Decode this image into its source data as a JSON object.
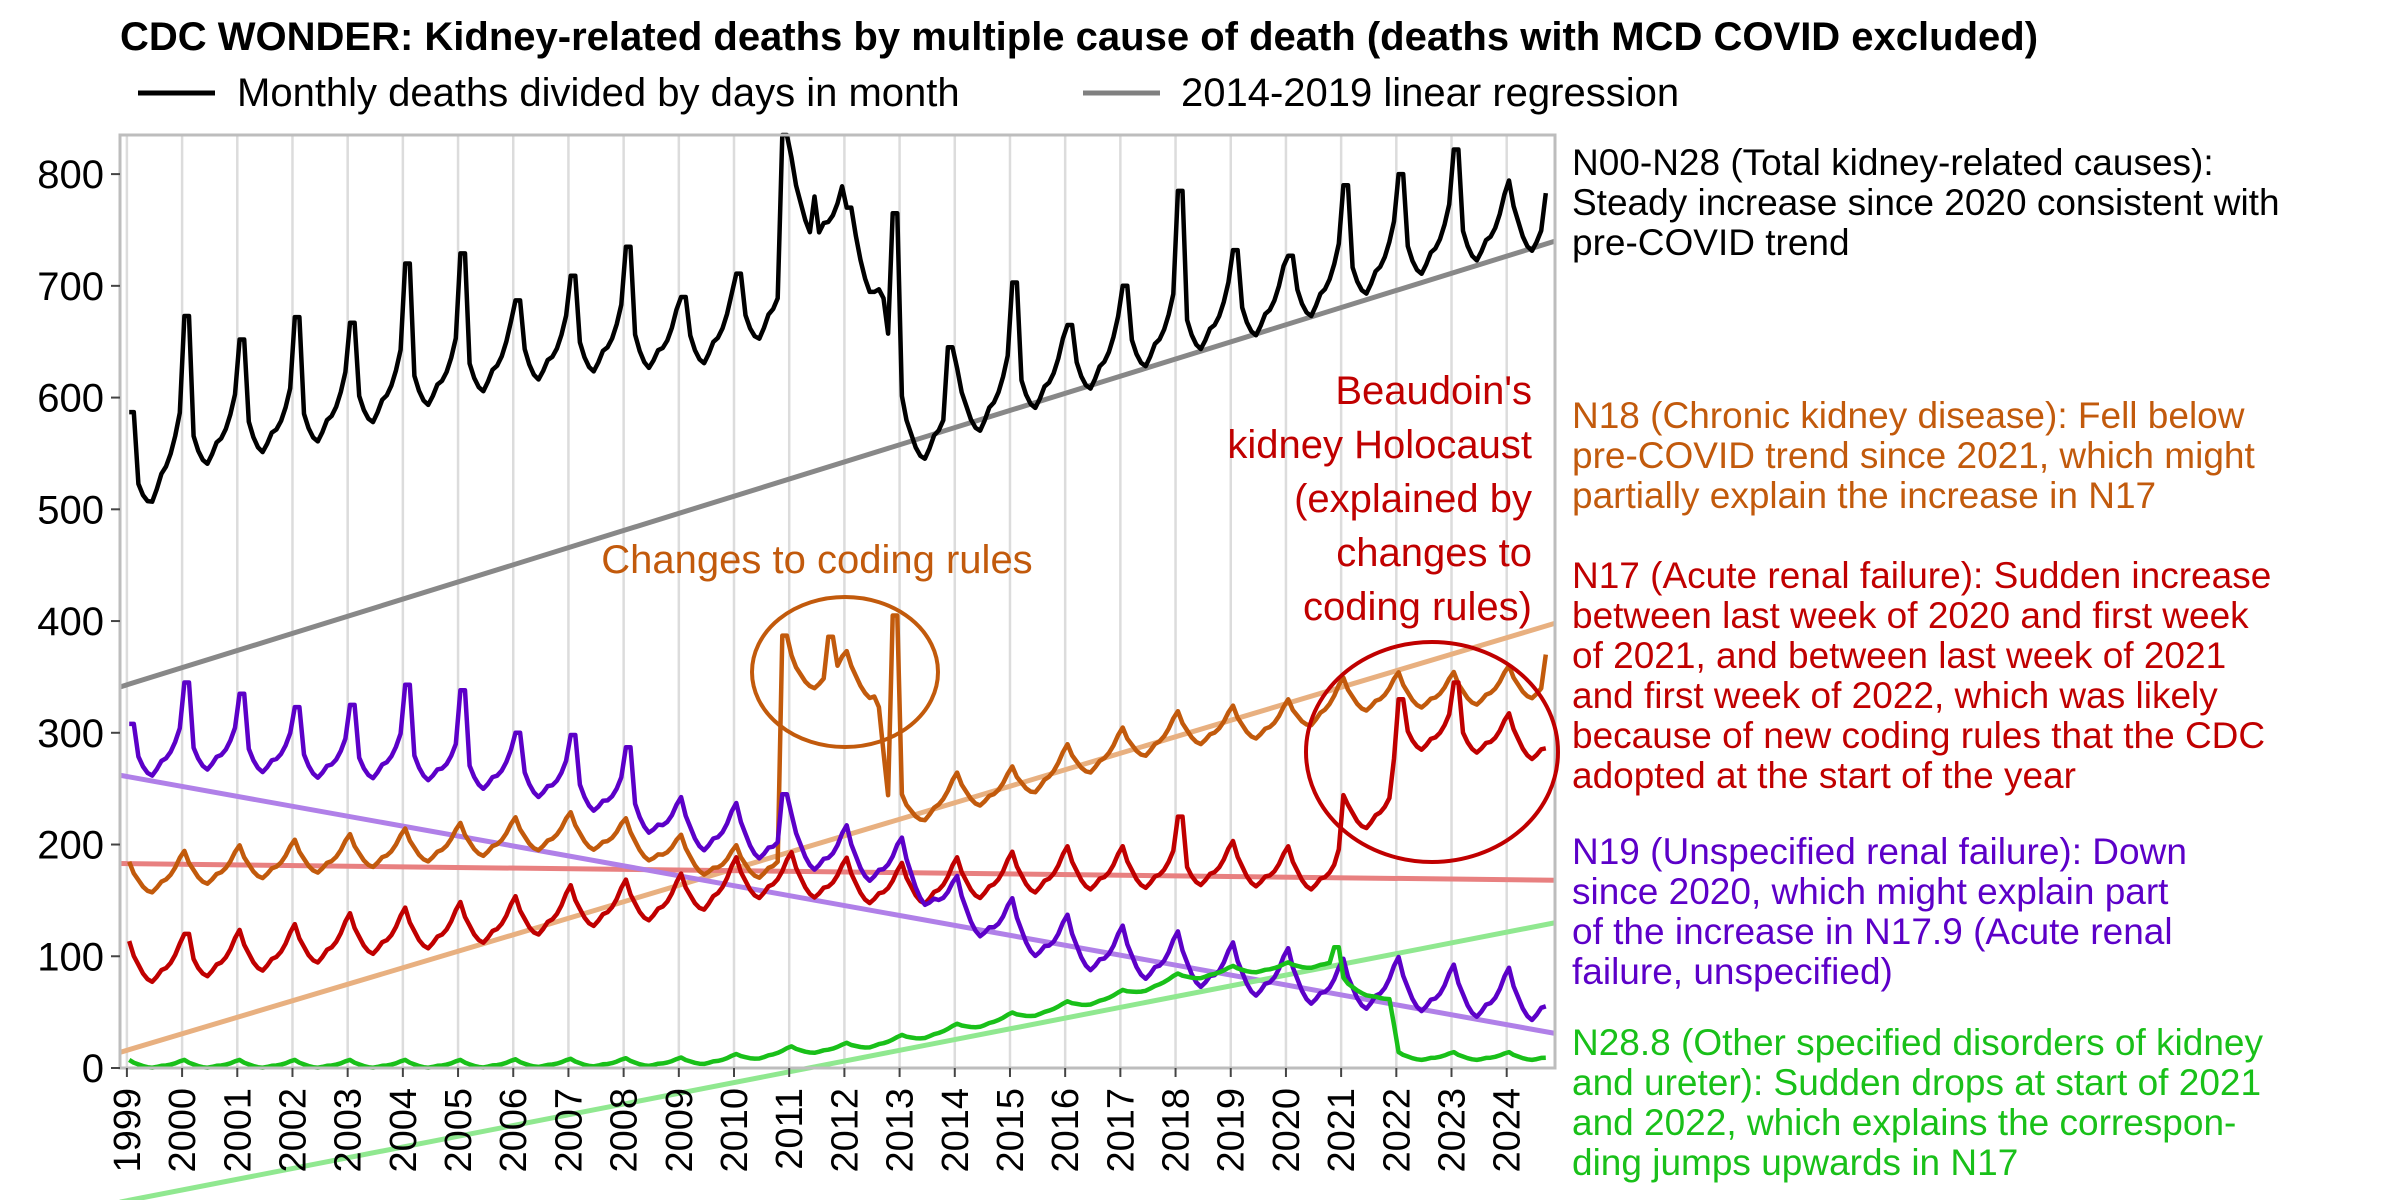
{
  "chart_data": {
    "type": "line",
    "title": "CDC WONDER: Kidney-related deaths by multiple cause of death (deaths with MCD COVID excluded)",
    "legend": {
      "placement": "top",
      "items": [
        {
          "label": "Monthly deaths divided by days in month",
          "color": "#000000"
        },
        {
          "label": "2014-2019 linear regression",
          "color": "#808080"
        }
      ]
    },
    "x_ticks": [
      "1999",
      "2000",
      "2001",
      "2002",
      "2003",
      "2004",
      "2005",
      "2006",
      "2007",
      "2008",
      "2009",
      "2010",
      "2011",
      "2012",
      "2013",
      "2014",
      "2015",
      "2016",
      "2017",
      "2018",
      "2019",
      "2020",
      "2021",
      "2022",
      "2023",
      "2024"
    ],
    "xlim": [
      1998.875,
      2024.875
    ],
    "ylim": [
      0,
      835
    ],
    "y_ticks": [
      0,
      100,
      200,
      300,
      400,
      500,
      600,
      700,
      800
    ],
    "grid": "vertical",
    "series": [
      {
        "key": "total",
        "color": "#000000",
        "trend_color": "#888888",
        "trend": [
          341,
          740
        ],
        "base_knots": [
          [
            1999,
            510
          ],
          [
            2000,
            560
          ],
          [
            2001,
            575
          ],
          [
            2002,
            580
          ],
          [
            2003,
            595
          ],
          [
            2004,
            615
          ],
          [
            2005,
            625
          ],
          [
            2006,
            640
          ],
          [
            2007,
            645
          ],
          [
            2008,
            655
          ],
          [
            2009,
            650
          ],
          [
            2010,
            665
          ],
          [
            2010.83,
            690
          ],
          [
            2011,
            775
          ],
          [
            2012,
            760
          ],
          [
            2012.7,
            700
          ],
          [
            2013,
            560
          ],
          [
            2014,
            585
          ],
          [
            2015,
            610
          ],
          [
            2016,
            625
          ],
          [
            2017,
            645
          ],
          [
            2018,
            665
          ],
          [
            2019,
            675
          ],
          [
            2020,
            690
          ],
          [
            2021,
            710
          ],
          [
            2022,
            730
          ],
          [
            2023,
            745
          ],
          [
            2024.75,
            760
          ]
        ],
        "season_amp": 95,
        "peaks": [
          [
            1999.08,
            587
          ],
          [
            2000.08,
            673
          ],
          [
            2001.08,
            652
          ],
          [
            2002.08,
            672
          ],
          [
            2003.08,
            667
          ],
          [
            2004.08,
            720
          ],
          [
            2005.08,
            729
          ],
          [
            2006.08,
            687
          ],
          [
            2007.08,
            709
          ],
          [
            2008.08,
            735
          ],
          [
            2009.08,
            690
          ],
          [
            2010.08,
            711
          ],
          [
            2010.92,
            835
          ],
          [
            2011.45,
            780
          ],
          [
            2012.08,
            770
          ],
          [
            2012.92,
            765
          ],
          [
            2013.92,
            645
          ],
          [
            2015.08,
            703
          ],
          [
            2016.08,
            665
          ],
          [
            2017.08,
            700
          ],
          [
            2018.08,
            785
          ],
          [
            2019.08,
            732
          ],
          [
            2020.08,
            727
          ],
          [
            2021.08,
            790
          ],
          [
            2022.08,
            800
          ],
          [
            2023.08,
            822
          ],
          [
            2024.75,
            783
          ]
        ]
      },
      {
        "key": "n18",
        "label": "N18",
        "color": "#c25a0c",
        "trend_color": "#e8b080",
        "trend": [
          14,
          398
        ],
        "base_knots": [
          [
            1999,
            165
          ],
          [
            2000,
            175
          ],
          [
            2001,
            180
          ],
          [
            2002,
            185
          ],
          [
            2003,
            190
          ],
          [
            2004,
            195
          ],
          [
            2005,
            200
          ],
          [
            2006,
            205
          ],
          [
            2007,
            210
          ],
          [
            2008,
            205
          ],
          [
            2009,
            190
          ],
          [
            2010,
            180
          ],
          [
            2010.85,
            185
          ],
          [
            2011,
            350
          ],
          [
            2012,
            355
          ],
          [
            2012.6,
            340
          ],
          [
            2012.85,
            215
          ],
          [
            2013,
            225
          ],
          [
            2014,
            245
          ],
          [
            2015,
            250
          ],
          [
            2016,
            270
          ],
          [
            2017,
            285
          ],
          [
            2018,
            300
          ],
          [
            2019,
            305
          ],
          [
            2020,
            310
          ],
          [
            2021,
            330
          ],
          [
            2022,
            335
          ],
          [
            2023,
            335
          ],
          [
            2024.75,
            345
          ]
        ],
        "season_amp": 45,
        "peaks": [
          [
            2010.92,
            387
          ],
          [
            2011.75,
            386
          ],
          [
            2012.92,
            405
          ],
          [
            2024.75,
            370
          ]
        ]
      },
      {
        "key": "n17",
        "label": "N17",
        "color": "#c00000",
        "trend_color": "#e88080",
        "trend": [
          183,
          168
        ],
        "base_knots": [
          [
            1999,
            90
          ],
          [
            2000,
            95
          ],
          [
            2001,
            100
          ],
          [
            2002,
            105
          ],
          [
            2003,
            115
          ],
          [
            2004,
            120
          ],
          [
            2005,
            125
          ],
          [
            2006,
            130
          ],
          [
            2007,
            140
          ],
          [
            2008,
            145
          ],
          [
            2009,
            150
          ],
          [
            2010,
            165
          ],
          [
            2011,
            170
          ],
          [
            2012,
            165
          ],
          [
            2013,
            160
          ],
          [
            2014,
            165
          ],
          [
            2015,
            170
          ],
          [
            2016,
            175
          ],
          [
            2017,
            175
          ],
          [
            2018,
            178
          ],
          [
            2019,
            180
          ],
          [
            2020,
            175
          ],
          [
            2020.95,
            175
          ],
          [
            2021.05,
            225
          ],
          [
            2021.9,
            235
          ],
          [
            2022.05,
            300
          ],
          [
            2023,
            300
          ],
          [
            2024.75,
            290
          ]
        ],
        "season_amp": 55,
        "peaks": [
          [
            2000.08,
            120
          ],
          [
            2018.08,
            225
          ],
          [
            2022.08,
            330
          ],
          [
            2023.08,
            345
          ]
        ]
      },
      {
        "key": "n19",
        "label": "N19",
        "color": "#5c00c8",
        "trend_color": "#b080e8",
        "trend": [
          262,
          31
        ],
        "base_knots": [
          [
            1999,
            275
          ],
          [
            2000,
            285
          ],
          [
            2001,
            285
          ],
          [
            2002,
            280
          ],
          [
            2003,
            275
          ],
          [
            2004,
            280
          ],
          [
            2005,
            270
          ],
          [
            2006,
            265
          ],
          [
            2007,
            255
          ],
          [
            2008,
            240
          ],
          [
            2009,
            215
          ],
          [
            2010,
            210
          ],
          [
            2011,
            200
          ],
          [
            2012,
            190
          ],
          [
            2013,
            180
          ],
          [
            2014,
            145
          ],
          [
            2015,
            125
          ],
          [
            2016,
            110
          ],
          [
            2017,
            100
          ],
          [
            2018,
            95
          ],
          [
            2019,
            85
          ],
          [
            2020,
            80
          ],
          [
            2021,
            70
          ],
          [
            2022,
            72
          ],
          [
            2023,
            65
          ],
          [
            2024.75,
            60
          ]
        ],
        "season_amp": 65,
        "peaks": [
          [
            1999.08,
            308
          ],
          [
            2000.08,
            345
          ],
          [
            2001.08,
            335
          ],
          [
            2002.08,
            323
          ],
          [
            2003.08,
            325
          ],
          [
            2004.08,
            343
          ],
          [
            2005.08,
            338
          ],
          [
            2006.08,
            300
          ],
          [
            2007.08,
            298
          ],
          [
            2008.08,
            287
          ],
          [
            2010.92,
            245
          ]
        ]
      },
      {
        "key": "n288",
        "label": "N28.8",
        "color": "#19c019",
        "trend_color": "#90e890",
        "trend": [
          -120,
          130
        ],
        "base_knots": [
          [
            1999,
            3
          ],
          [
            2005,
            3
          ],
          [
            2009,
            5
          ],
          [
            2010,
            8
          ],
          [
            2011,
            15
          ],
          [
            2012,
            18
          ],
          [
            2013,
            25
          ],
          [
            2014,
            35
          ],
          [
            2015,
            45
          ],
          [
            2016,
            55
          ],
          [
            2017,
            65
          ],
          [
            2018,
            80
          ],
          [
            2019,
            87
          ],
          [
            2020,
            90
          ],
          [
            2020.95,
            95
          ],
          [
            2021.05,
            75
          ],
          [
            2021.9,
            60
          ],
          [
            2022.02,
            10
          ],
          [
            2024.75,
            10
          ]
        ],
        "season_amp": 10,
        "peaks": [
          [
            2020.92,
            108
          ]
        ]
      }
    ],
    "annotations": {
      "changes_rules": {
        "text": "Changes to coding rules",
        "color": "#c25a0c"
      },
      "holocaust": {
        "lines": [
          "Beaudoin's",
          "kidney Holocaust",
          "(explained by",
          "changes to",
          "coding rules)"
        ],
        "color": "#c00000"
      }
    },
    "side_notes": [
      {
        "key": "note-total",
        "color": "#000000",
        "lines": [
          "N00-N28 (Total kidney-related causes):",
          "Steady increase since 2020 consistent with",
          "pre-COVID trend"
        ]
      },
      {
        "key": "note-n18",
        "color": "#c25a0c",
        "lines": [
          "N18 (Chronic kidney disease): Fell below",
          "pre-COVID trend since 2021, which might",
          "partially explain the increase in N17"
        ]
      },
      {
        "key": "note-n17",
        "color": "#c00000",
        "lines": [
          "N17 (Acute renal failure): Sudden increase",
          "between last week of 2020 and first week",
          "of 2021, and between last week of 2021",
          "and first week of 2022, which was likely",
          "because of new coding rules that the CDC",
          "adopted at the start of the year"
        ]
      },
      {
        "key": "note-n19",
        "color": "#5c00c8",
        "lines": [
          "N19 (Unspecified renal failure): Down",
          "since 2020, which might explain part",
          "of the increase in N17.9 (Acute renal",
          "failure, unspecified)"
        ]
      },
      {
        "key": "note-n288",
        "color": "#19c019",
        "lines": [
          "N28.8 (Other specified disorders of kidney",
          "and ureter): Sudden drops at start of 2021",
          "and 2022, which explains the correspon-",
          "ding jumps upwards in N17"
        ]
      }
    ]
  }
}
